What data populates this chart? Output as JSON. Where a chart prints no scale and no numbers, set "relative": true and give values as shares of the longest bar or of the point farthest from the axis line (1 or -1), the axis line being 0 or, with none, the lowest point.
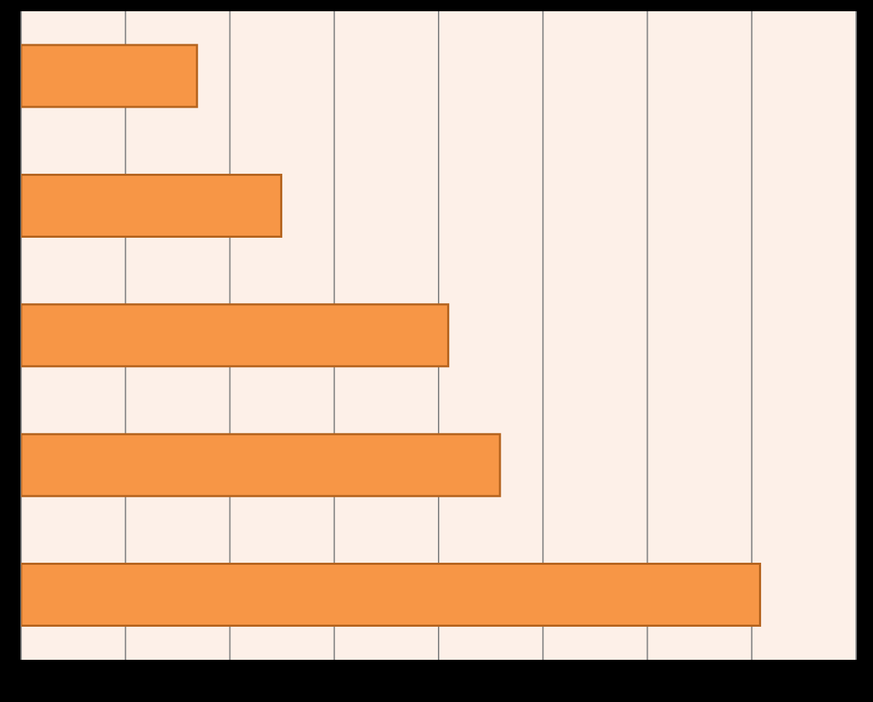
{
  "chart_data": {
    "type": "bar",
    "orientation": "horizontal",
    "relative": true,
    "categories": [
      null,
      null,
      null,
      null,
      null
    ],
    "values": [
      0.238,
      0.352,
      0.578,
      0.648,
      1
    ],
    "color": "#f79646",
    "grid": "x"
  }
}
